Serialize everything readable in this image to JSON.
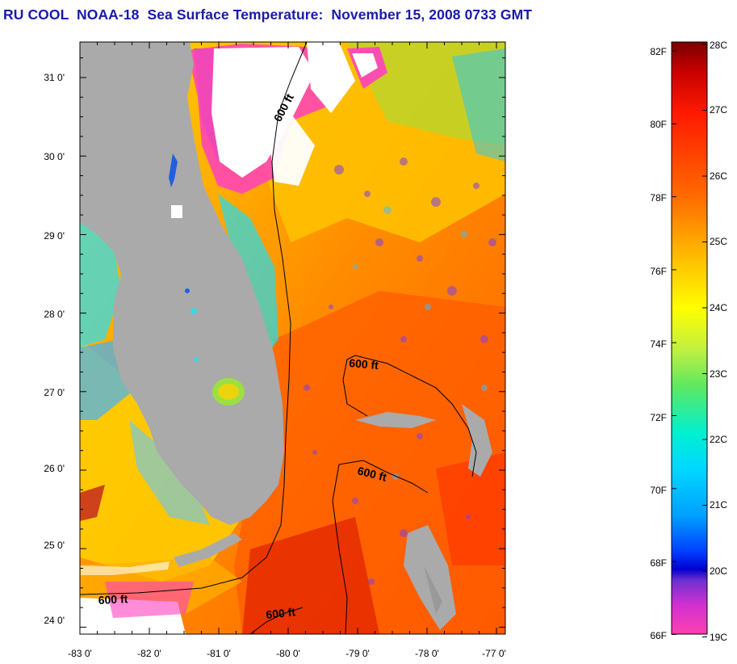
{
  "title": "RU COOL  NOAA-18  Sea Surface Temperature:  November 15, 2008 0733 GMT",
  "map": {
    "lon_labels": [
      "-83 0'",
      "-82 0'",
      "-81 0'",
      "-80 0'",
      "-79 0'",
      "-78 0'",
      "-77 0'"
    ],
    "lat_labels": [
      "31 0'",
      "30 0'",
      "29 0'",
      "28 0'",
      "27 0'",
      "26 0'",
      "25 0'",
      "24 0'"
    ],
    "contour_labels": [
      "600 ft",
      "600 ft",
      "600 ft",
      "600 ft",
      "600 ft"
    ],
    "lon_range": [
      -83,
      -76.9
    ],
    "lat_range": [
      23.85,
      31.4
    ]
  },
  "colorbar": {
    "f_labels": [
      "82F",
      "80F",
      "78F",
      "76F",
      "74F",
      "72F",
      "70F",
      "68F",
      "66F"
    ],
    "c_labels": [
      "28C",
      "27C",
      "26C",
      "25C",
      "24C",
      "23C",
      "22C",
      "21C",
      "20C",
      "19C"
    ]
  },
  "colors": {
    "title": "#1a1aa8",
    "land": "#aaaaaa",
    "cloud": "#ffffff"
  }
}
